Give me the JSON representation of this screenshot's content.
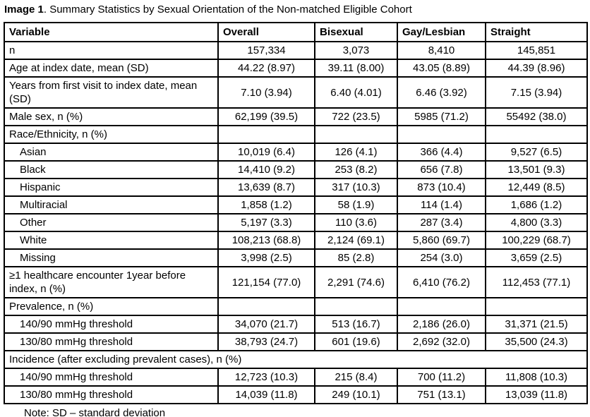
{
  "caption": {
    "label": "Image 1",
    "text": ". Summary Statistics by Sexual Orientation of the Non-matched Eligible Cohort"
  },
  "table": {
    "columns": [
      "Variable",
      "Overall",
      "Bisexual",
      "Gay/Lesbian",
      "Straight"
    ],
    "rows": [
      {
        "label": "n",
        "values": [
          "157,334",
          "3,073",
          "8,410",
          "145,851"
        ]
      },
      {
        "label": "Age at index date, mean (SD)",
        "values": [
          "44.22 (8.97)",
          "39.11 (8.00)",
          "43.05 (8.89)",
          "44.39 (8.96)"
        ]
      },
      {
        "label": "Years from first visit to index date, mean (SD)",
        "values": [
          "7.10 (3.94)",
          "6.40 (4.01)",
          "6.46 (3.92)",
          "7.15 (3.94)"
        ]
      },
      {
        "label": "Male sex, n (%)",
        "values": [
          "62,199 (39.5)",
          "722 (23.5)",
          "5985 (71.2)",
          "55492 (38.0)"
        ]
      },
      {
        "label": "Race/Ethnicity, n (%)",
        "values": [
          "",
          "",
          "",
          ""
        ]
      },
      {
        "label": "Asian",
        "values": [
          "10,019 (6.4)",
          "126 (4.1)",
          "366 (4.4)",
          "9,527 (6.5)"
        ]
      },
      {
        "label": "Black",
        "values": [
          "14,410 (9.2)",
          "253 (8.2)",
          "656 (7.8)",
          "13,501 (9.3)"
        ]
      },
      {
        "label": "Hispanic",
        "values": [
          "13,639 (8.7)",
          "317 (10.3)",
          "873 (10.4)",
          "12,449 (8.5)"
        ]
      },
      {
        "label": "Multiracial",
        "values": [
          "1,858 (1.2)",
          "58 (1.9)",
          "114 (1.4)",
          "1,686 (1.2)"
        ]
      },
      {
        "label": "Other",
        "values": [
          "5,197 (3.3)",
          "110 (3.6)",
          "287 (3.4)",
          "4,800 (3.3)"
        ]
      },
      {
        "label": "White",
        "values": [
          "108,213 (68.8)",
          "2,124 (69.1)",
          "5,860 (69.7)",
          "100,229 (68.7)"
        ]
      },
      {
        "label": "Missing",
        "values": [
          "3,998 (2.5)",
          "85 (2.8)",
          "254 (3.0)",
          "3,659 (2.5)"
        ]
      },
      {
        "label": "≥1 healthcare encounter 1year before index, n (%)",
        "values": [
          "121,154 (77.0)",
          "2,291 (74.6)",
          "6,410 (76.2)",
          "112,453 (77.1)"
        ]
      },
      {
        "label": "Prevalence, n (%)",
        "values": [
          "",
          "",
          "",
          ""
        ]
      },
      {
        "label": "140/90 mmHg threshold",
        "values": [
          "34,070 (21.7)",
          "513 (16.7)",
          "2,186 (26.0)",
          "31,371 (21.5)"
        ]
      },
      {
        "label": "130/80 mmHg threshold",
        "values": [
          "38,793 (24.7)",
          "601 (19.6)",
          "2,692 (32.0)",
          "35,500 (24.3)"
        ]
      },
      {
        "label": "Incidence (after excluding prevalent cases), n (%)"
      },
      {
        "label": "140/90 mmHg threshold",
        "values": [
          "12,723 (10.3)",
          "215 (8.4)",
          "700 (11.2)",
          "11,808 (10.3)"
        ]
      },
      {
        "label": "130/80 mmHg threshold",
        "values": [
          "14,039 (11.8)",
          "249 (10.1)",
          "751 (13.1)",
          "13,039 (11.8)"
        ]
      }
    ],
    "note": "Note: SD – standard deviation"
  }
}
